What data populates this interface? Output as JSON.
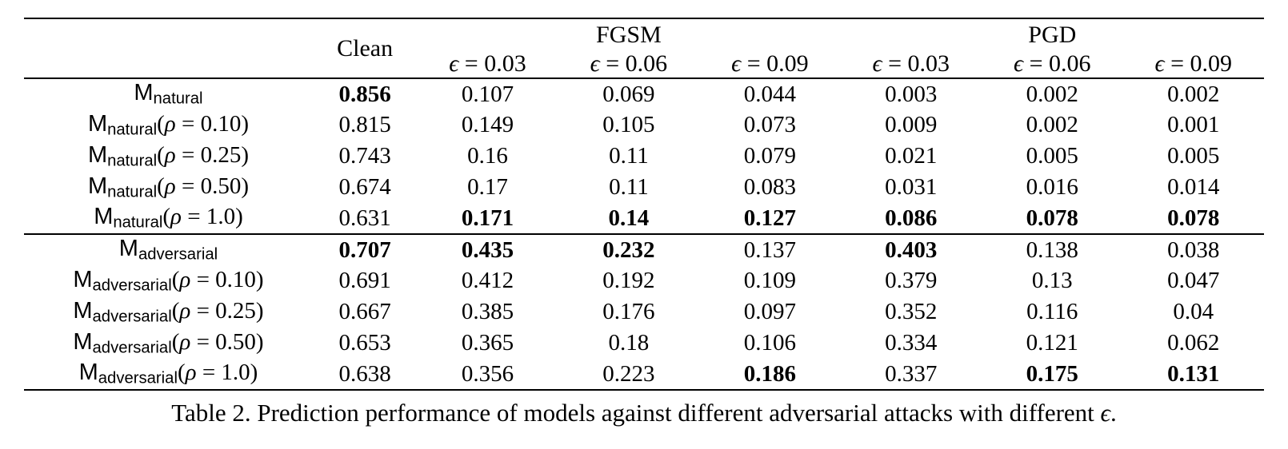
{
  "page": {
    "caption_segments": [
      {
        "t": "Table 2. Prediction performance of models against different adversarial attacks with different ",
        "s": "r"
      },
      {
        "t": "ϵ",
        "s": "i"
      },
      {
        "t": ".",
        "s": "r"
      }
    ]
  },
  "table": {
    "header": {
      "corner": "",
      "clean": "Clean",
      "groups": [
        {
          "label": "FGSM",
          "span": 3
        },
        {
          "label": "PGD",
          "span": 3
        }
      ],
      "sub": [
        [
          {
            "t": "ϵ",
            "s": "i"
          },
          {
            "t": " = 0.03",
            "s": "r"
          }
        ],
        [
          {
            "t": "ϵ",
            "s": "i"
          },
          {
            "t": " = 0.06",
            "s": "r"
          }
        ],
        [
          {
            "t": "ϵ",
            "s": "i"
          },
          {
            "t": " = 0.09",
            "s": "r"
          }
        ],
        [
          {
            "t": "ϵ",
            "s": "i"
          },
          {
            "t": " = 0.03",
            "s": "r"
          }
        ],
        [
          {
            "t": "ϵ",
            "s": "i"
          },
          {
            "t": " = 0.06",
            "s": "r"
          }
        ],
        [
          {
            "t": "ϵ",
            "s": "i"
          },
          {
            "t": " = 0.09",
            "s": "r"
          }
        ]
      ]
    },
    "sections": [
      {
        "name": "natural",
        "rows": [
          {
            "label": [
              {
                "t": "M",
                "s": "m"
              },
              {
                "t": "natural",
                "s": "sub"
              }
            ],
            "values": [
              {
                "v": "0.856",
                "b": true
              },
              {
                "v": "0.107",
                "b": false
              },
              {
                "v": "0.069",
                "b": false
              },
              {
                "v": "0.044",
                "b": false
              },
              {
                "v": "0.003",
                "b": false
              },
              {
                "v": "0.002",
                "b": false
              },
              {
                "v": "0.002",
                "b": false
              }
            ]
          },
          {
            "label": [
              {
                "t": "M",
                "s": "m"
              },
              {
                "t": "natural",
                "s": "sub"
              },
              {
                "t": "(",
                "s": "r"
              },
              {
                "t": "ρ",
                "s": "i"
              },
              {
                "t": " = 0.10)",
                "s": "r"
              }
            ],
            "values": [
              {
                "v": "0.815",
                "b": false
              },
              {
                "v": "0.149",
                "b": false
              },
              {
                "v": "0.105",
                "b": false
              },
              {
                "v": "0.073",
                "b": false
              },
              {
                "v": "0.009",
                "b": false
              },
              {
                "v": "0.002",
                "b": false
              },
              {
                "v": "0.001",
                "b": false
              }
            ]
          },
          {
            "label": [
              {
                "t": "M",
                "s": "m"
              },
              {
                "t": "natural",
                "s": "sub"
              },
              {
                "t": "(",
                "s": "r"
              },
              {
                "t": "ρ",
                "s": "i"
              },
              {
                "t": " = 0.25)",
                "s": "r"
              }
            ],
            "values": [
              {
                "v": "0.743",
                "b": false
              },
              {
                "v": "0.16",
                "b": false
              },
              {
                "v": "0.11",
                "b": false
              },
              {
                "v": "0.079",
                "b": false
              },
              {
                "v": "0.021",
                "b": false
              },
              {
                "v": "0.005",
                "b": false
              },
              {
                "v": "0.005",
                "b": false
              }
            ]
          },
          {
            "label": [
              {
                "t": "M",
                "s": "m"
              },
              {
                "t": "natural",
                "s": "sub"
              },
              {
                "t": "(",
                "s": "r"
              },
              {
                "t": "ρ",
                "s": "i"
              },
              {
                "t": " = 0.50)",
                "s": "r"
              }
            ],
            "values": [
              {
                "v": "0.674",
                "b": false
              },
              {
                "v": "0.17",
                "b": false
              },
              {
                "v": "0.11",
                "b": false
              },
              {
                "v": "0.083",
                "b": false
              },
              {
                "v": "0.031",
                "b": false
              },
              {
                "v": "0.016",
                "b": false
              },
              {
                "v": "0.014",
                "b": false
              }
            ]
          },
          {
            "label": [
              {
                "t": "M",
                "s": "m"
              },
              {
                "t": "natural",
                "s": "sub"
              },
              {
                "t": "(",
                "s": "r"
              },
              {
                "t": "ρ",
                "s": "i"
              },
              {
                "t": " = 1.0)",
                "s": "r"
              }
            ],
            "values": [
              {
                "v": "0.631",
                "b": false
              },
              {
                "v": "0.171",
                "b": true
              },
              {
                "v": "0.14",
                "b": true
              },
              {
                "v": "0.127",
                "b": true
              },
              {
                "v": "0.086",
                "b": true
              },
              {
                "v": "0.078",
                "b": true
              },
              {
                "v": "0.078",
                "b": true
              }
            ]
          }
        ]
      },
      {
        "name": "adversarial",
        "rows": [
          {
            "label": [
              {
                "t": "M",
                "s": "m"
              },
              {
                "t": "adversarial",
                "s": "sub"
              }
            ],
            "values": [
              {
                "v": "0.707",
                "b": true
              },
              {
                "v": "0.435",
                "b": true
              },
              {
                "v": "0.232",
                "b": true
              },
              {
                "v": "0.137",
                "b": false
              },
              {
                "v": "0.403",
                "b": true
              },
              {
                "v": "0.138",
                "b": false
              },
              {
                "v": "0.038",
                "b": false
              }
            ]
          },
          {
            "label": [
              {
                "t": "M",
                "s": "m"
              },
              {
                "t": "adversarial",
                "s": "sub"
              },
              {
                "t": "(",
                "s": "r"
              },
              {
                "t": "ρ",
                "s": "i"
              },
              {
                "t": " = 0.10)",
                "s": "r"
              }
            ],
            "values": [
              {
                "v": "0.691",
                "b": false
              },
              {
                "v": "0.412",
                "b": false
              },
              {
                "v": "0.192",
                "b": false
              },
              {
                "v": "0.109",
                "b": false
              },
              {
                "v": "0.379",
                "b": false
              },
              {
                "v": "0.13",
                "b": false
              },
              {
                "v": "0.047",
                "b": false
              }
            ]
          },
          {
            "label": [
              {
                "t": "M",
                "s": "m"
              },
              {
                "t": "adversarial",
                "s": "sub"
              },
              {
                "t": "(",
                "s": "r"
              },
              {
                "t": "ρ",
                "s": "i"
              },
              {
                "t": " = 0.25)",
                "s": "r"
              }
            ],
            "values": [
              {
                "v": "0.667",
                "b": false
              },
              {
                "v": "0.385",
                "b": false
              },
              {
                "v": "0.176",
                "b": false
              },
              {
                "v": "0.097",
                "b": false
              },
              {
                "v": "0.352",
                "b": false
              },
              {
                "v": "0.116",
                "b": false
              },
              {
                "v": "0.04",
                "b": false
              }
            ]
          },
          {
            "label": [
              {
                "t": "M",
                "s": "m"
              },
              {
                "t": "adversarial",
                "s": "sub"
              },
              {
                "t": "(",
                "s": "r"
              },
              {
                "t": "ρ",
                "s": "i"
              },
              {
                "t": " = 0.50)",
                "s": "r"
              }
            ],
            "values": [
              {
                "v": "0.653",
                "b": false
              },
              {
                "v": "0.365",
                "b": false
              },
              {
                "v": "0.18",
                "b": false
              },
              {
                "v": "0.106",
                "b": false
              },
              {
                "v": "0.334",
                "b": false
              },
              {
                "v": "0.121",
                "b": false
              },
              {
                "v": "0.062",
                "b": false
              }
            ]
          },
          {
            "label": [
              {
                "t": "M",
                "s": "m"
              },
              {
                "t": "adversarial",
                "s": "sub"
              },
              {
                "t": "(",
                "s": "r"
              },
              {
                "t": "ρ",
                "s": "i"
              },
              {
                "t": " = 1.0)",
                "s": "r"
              }
            ],
            "values": [
              {
                "v": "0.638",
                "b": false
              },
              {
                "v": "0.356",
                "b": false
              },
              {
                "v": "0.223",
                "b": false
              },
              {
                "v": "0.186",
                "b": true
              },
              {
                "v": "0.337",
                "b": false
              },
              {
                "v": "0.175",
                "b": true
              },
              {
                "v": "0.131",
                "b": true
              }
            ]
          }
        ]
      }
    ]
  }
}
